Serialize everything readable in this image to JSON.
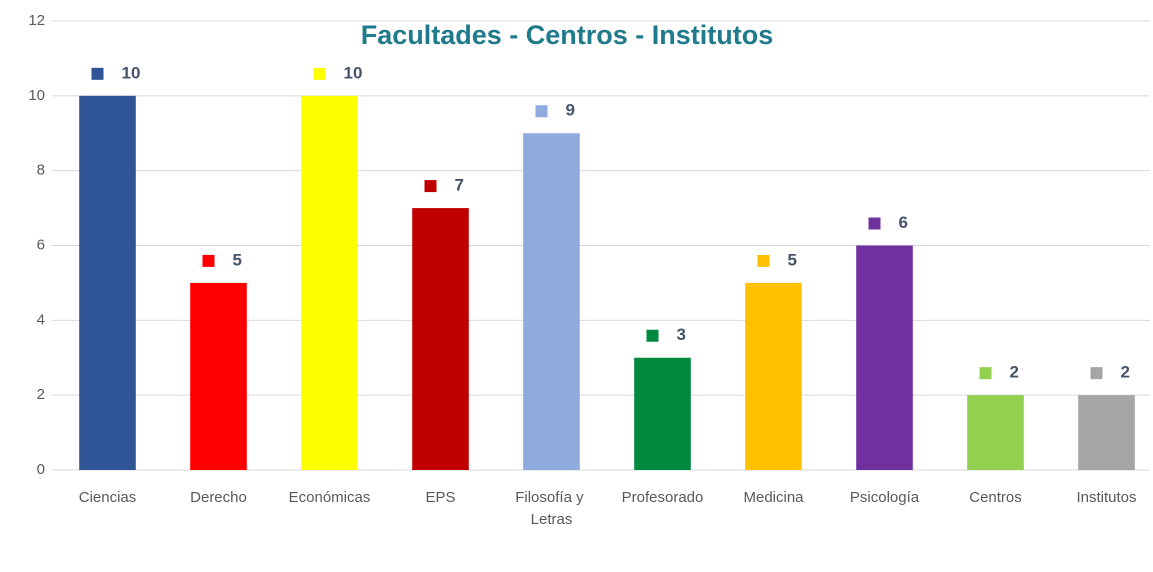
{
  "chart_data": {
    "type": "bar",
    "title": "Facultades - Centros - Institutos",
    "categories": [
      "Ciencias",
      "Derecho",
      "Económicas",
      "EPS",
      "Filosofía y Letras",
      "Profesorado",
      "Medicina",
      "Psicología",
      "Centros",
      "Institutos"
    ],
    "values": [
      10,
      5,
      10,
      7,
      9,
      3,
      5,
      6,
      2,
      2
    ],
    "colors": [
      "#2f5597",
      "#ff0000",
      "#ffff00",
      "#c00000",
      "#8faadc",
      "#00893f",
      "#ffc000",
      "#7030a0",
      "#92d050",
      "#a5a5a5"
    ],
    "ylim": [
      0,
      12
    ],
    "yticks": [
      0,
      2,
      4,
      6,
      8,
      10,
      12
    ],
    "grid": true
  }
}
